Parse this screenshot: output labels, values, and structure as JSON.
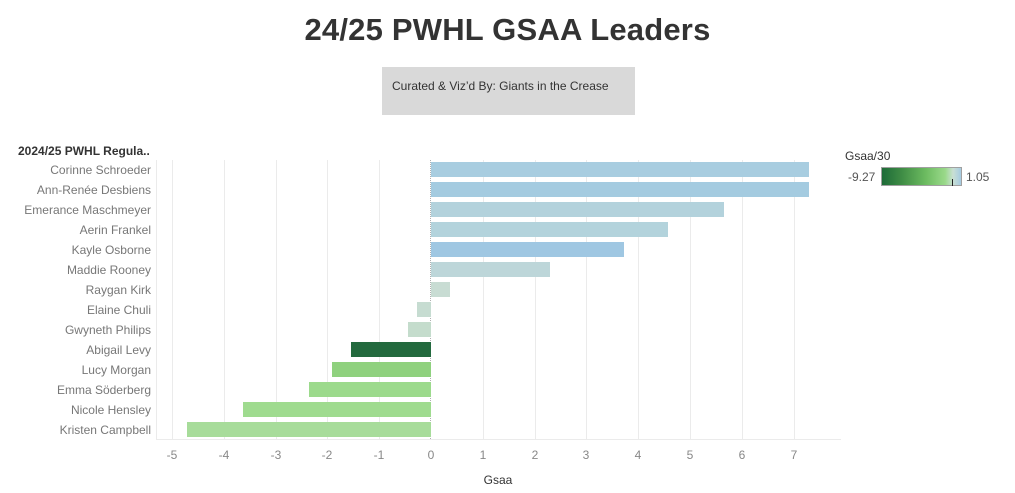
{
  "title": "24/25 PWHL GSAA Leaders",
  "credit": "Curated & Viz’d By: Giants in the Crease",
  "row_header": "2024/25 PWHL Regula..",
  "legend": {
    "title": "Gsaa/30",
    "min_label": "-9.27",
    "max_label": "1.05",
    "colors": [
      "#1d6b38",
      "#9ad98a",
      "#c9dfd4",
      "#a6cbe1"
    ]
  },
  "axis": {
    "xlabel": "Gsaa",
    "ticks": [
      "-5",
      "-4",
      "-3",
      "-2",
      "-1",
      "0",
      "1",
      "2",
      "3",
      "4",
      "5",
      "6",
      "7"
    ]
  },
  "chart_data": {
    "type": "bar",
    "orientation": "horizontal",
    "title": "24/25 PWHL GSAA Leaders",
    "subtitle": "Curated & Viz’d By: Giants in the Crease",
    "row_header": "2024/25 PWHL Regula..",
    "xlabel": "Gsaa",
    "ylabel": "",
    "xlim": [
      -5.3,
      7.9
    ],
    "x_ticks": [
      -5,
      -4,
      -3,
      -2,
      -1,
      0,
      1,
      2,
      3,
      4,
      5,
      6,
      7
    ],
    "grid": "vertical",
    "legend": {
      "title": "Gsaa/30",
      "type": "color-gradient",
      "min": -9.27,
      "max": 1.05,
      "position": "top-right"
    },
    "categories": [
      "Corinne Schroeder",
      "Ann-Renée Desbiens",
      "Emerance Maschmeyer",
      "Aerin Frankel",
      "Kayle Osborne",
      "Maddie Rooney",
      "Raygan Kirk",
      "Elaine Chuli",
      "Gwyneth Philips",
      "Abigail Levy",
      "Lucy Morgan",
      "Emma Söderberg",
      "Nicole Hensley",
      "Kristen Campbell"
    ],
    "values": [
      7.3,
      7.3,
      5.66,
      4.58,
      3.72,
      2.3,
      0.37,
      -0.27,
      -0.44,
      -1.54,
      -1.91,
      -2.36,
      -3.63,
      -4.71
    ],
    "colors": [
      "#a8cde0",
      "#a4cbe0",
      "#b3d2dc",
      "#b3d3dc",
      "#9fc7e2",
      "#bdd6d9",
      "#c8dcd3",
      "#c6dcd1",
      "#c4dccc",
      "#236a3e",
      "#8fd17e",
      "#9cda8c",
      "#9fdb8f",
      "#a7dc9a"
    ]
  }
}
